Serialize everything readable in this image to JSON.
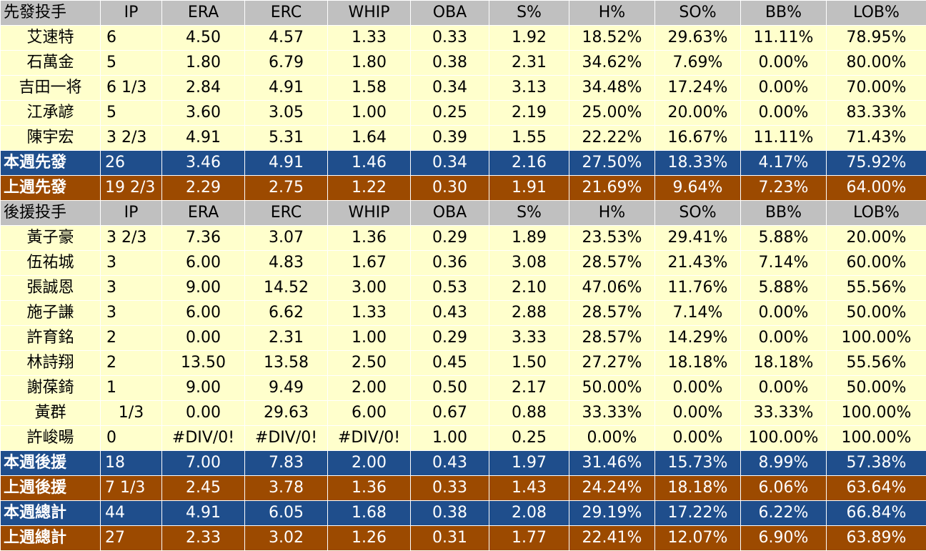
{
  "colors": {
    "header_bg": "#c0c0c0",
    "row_bg": "#ffffcc",
    "this_week_bg": "#1f4e8c",
    "last_week_bg": "#9c4a00",
    "summary_text": "#ffffff"
  },
  "starters": {
    "header": [
      "先發投手",
      "IP",
      "ERA",
      "ERC",
      "WHIP",
      "OBA",
      "S%",
      "H%",
      "SO%",
      "BB%",
      "LOB%"
    ],
    "rows": [
      [
        "艾速特",
        "6",
        "4.50",
        "4.57",
        "1.33",
        "0.33",
        "1.92",
        "18.52%",
        "29.63%",
        "11.11%",
        "78.95%"
      ],
      [
        "石萬金",
        "5",
        "1.80",
        "6.79",
        "1.80",
        "0.38",
        "2.31",
        "34.62%",
        "7.69%",
        "0.00%",
        "80.00%"
      ],
      [
        "吉田一将",
        "6 1/3",
        "2.84",
        "4.91",
        "1.58",
        "0.34",
        "3.13",
        "34.48%",
        "17.24%",
        "0.00%",
        "70.00%"
      ],
      [
        "江承諺",
        "5",
        "3.60",
        "3.05",
        "1.00",
        "0.25",
        "2.19",
        "25.00%",
        "20.00%",
        "0.00%",
        "83.33%"
      ],
      [
        "陳宇宏",
        "3 2/3",
        "4.91",
        "5.31",
        "1.64",
        "0.39",
        "1.55",
        "22.22%",
        "16.67%",
        "11.11%",
        "71.43%"
      ]
    ],
    "this_week": [
      "本週先發",
      "26",
      "3.46",
      "4.91",
      "1.46",
      "0.34",
      "2.16",
      "27.50%",
      "18.33%",
      "4.17%",
      "75.92%"
    ],
    "last_week": [
      "上週先發",
      "19 2/3",
      "2.29",
      "2.75",
      "1.22",
      "0.30",
      "1.91",
      "21.69%",
      "9.64%",
      "7.23%",
      "64.00%"
    ]
  },
  "relievers": {
    "header": [
      "後援投手",
      "IP",
      "ERA",
      "ERC",
      "WHIP",
      "OBA",
      "S%",
      "H%",
      "SO%",
      "BB%",
      "LOB%"
    ],
    "rows": [
      [
        "黃子豪",
        "3 2/3",
        "7.36",
        "3.07",
        "1.36",
        "0.29",
        "1.89",
        "23.53%",
        "29.41%",
        "5.88%",
        "20.00%"
      ],
      [
        "伍祐城",
        "3",
        "6.00",
        "4.83",
        "1.67",
        "0.36",
        "3.08",
        "28.57%",
        "21.43%",
        "7.14%",
        "60.00%"
      ],
      [
        "張誠恩",
        "3",
        "9.00",
        "14.52",
        "3.00",
        "0.53",
        "2.10",
        "47.06%",
        "11.76%",
        "5.88%",
        "55.56%"
      ],
      [
        "施子謙",
        "3",
        "6.00",
        "6.62",
        "1.33",
        "0.43",
        "2.88",
        "28.57%",
        "7.14%",
        "0.00%",
        "50.00%"
      ],
      [
        "許育銘",
        "2",
        "0.00",
        "2.31",
        "1.00",
        "0.29",
        "3.33",
        "28.57%",
        "14.29%",
        "0.00%",
        "100.00%"
      ],
      [
        "林詩翔",
        "2",
        "13.50",
        "13.58",
        "2.50",
        "0.45",
        "1.50",
        "27.27%",
        "18.18%",
        "18.18%",
        "55.56%"
      ],
      [
        "謝葆錡",
        "1",
        "9.00",
        "9.49",
        "2.00",
        "0.50",
        "2.17",
        "50.00%",
        "0.00%",
        "0.00%",
        "50.00%"
      ],
      [
        "黃群",
        "1/3",
        "0.00",
        "29.63",
        "6.00",
        "0.67",
        "0.88",
        "33.33%",
        "0.00%",
        "33.33%",
        "100.00%"
      ],
      [
        "許峻暘",
        "0",
        "#DIV/0!",
        "#DIV/0!",
        "#DIV/0!",
        "1.00",
        "0.25",
        "0.00%",
        "0.00%",
        "100.00%",
        "100.00%"
      ]
    ],
    "this_week": [
      "本週後援",
      "18",
      "7.00",
      "7.83",
      "2.00",
      "0.43",
      "1.97",
      "31.46%",
      "15.73%",
      "8.99%",
      "57.38%"
    ],
    "last_week": [
      "上週後援",
      "7 1/3",
      "2.45",
      "3.78",
      "1.36",
      "0.33",
      "1.43",
      "24.24%",
      "18.18%",
      "6.06%",
      "63.64%"
    ]
  },
  "totals": {
    "this_week": [
      "本週總計",
      "44",
      "4.91",
      "6.05",
      "1.68",
      "0.38",
      "2.08",
      "29.19%",
      "17.22%",
      "6.22%",
      "66.84%"
    ],
    "last_week": [
      "上週總計",
      "27",
      "2.33",
      "3.02",
      "1.26",
      "0.31",
      "1.77",
      "22.41%",
      "12.07%",
      "6.90%",
      "63.89%"
    ]
  }
}
